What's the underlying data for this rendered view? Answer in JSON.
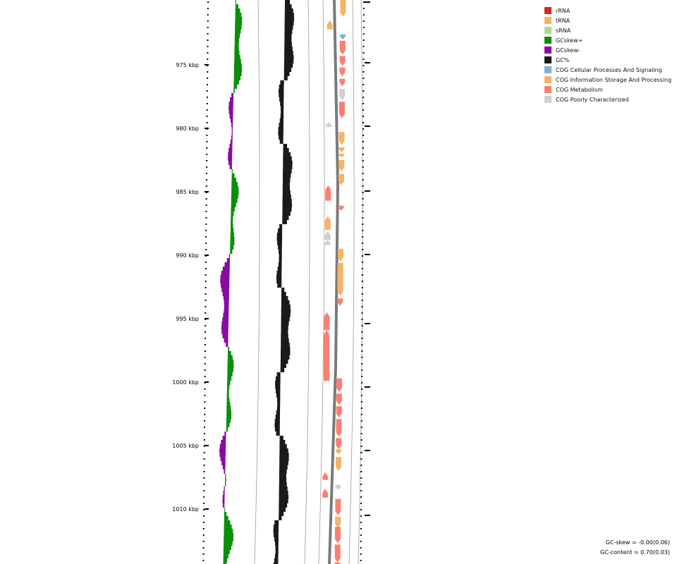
{
  "legend": [
    {
      "label": "rRNA",
      "color": "#d62728"
    },
    {
      "label": "tRNA",
      "color": "#f7b267"
    },
    {
      "label": "sRNA",
      "color": "#a6d99a"
    },
    {
      "label": "GCskew+",
      "color": "#0a8f0a"
    },
    {
      "label": "GCskew-",
      "color": "#8b0aa5"
    },
    {
      "label": "GC%",
      "color": "#1a1a1a"
    },
    {
      "label": "COG Cellular Processes And Signaling",
      "color": "#80b1d3"
    },
    {
      "label": "COG Information Storage And Processing",
      "color": "#f7b267"
    },
    {
      "label": "COG Metabolism",
      "color": "#fa8072"
    },
    {
      "label": "COG Poorly Characterized",
      "color": "#cfcfcf"
    }
  ],
  "axis": {
    "ticks": [
      "975 kbp",
      "980 kbp",
      "985 kbp",
      "990 kbp",
      "995 kbp",
      "1000 kbp",
      "1005 kbp",
      "1010 kbp"
    ]
  },
  "stats": {
    "gc_skew": "GC-skew = -0.00(0.06)",
    "gc_content": "GC-content = 0.70(0.03)"
  },
  "features": [
    {
      "kbp": 969.3,
      "len": 1.9,
      "strand": "+",
      "cog": "COG Information Storage And Processing"
    },
    {
      "kbp": 971.5,
      "len": 0.7,
      "strand": "-",
      "cog": "COG Information Storage And Processing"
    },
    {
      "kbp": 972.6,
      "len": 0.4,
      "strand": "+",
      "cog": "COG Cellular Processes And Signaling"
    },
    {
      "kbp": 973.1,
      "len": 1.1,
      "strand": "+",
      "cog": "COG Metabolism"
    },
    {
      "kbp": 974.3,
      "len": 0.8,
      "strand": "+",
      "cog": "COG Metabolism"
    },
    {
      "kbp": 975.2,
      "len": 0.7,
      "strand": "+",
      "cog": "COG Metabolism"
    },
    {
      "kbp": 976.1,
      "len": 0.6,
      "strand": "+",
      "cog": "COG Metabolism"
    },
    {
      "kbp": 976.9,
      "len": 0.9,
      "strand": "+",
      "cog": "COG Poorly Characterized"
    },
    {
      "kbp": 977.9,
      "len": 1.3,
      "strand": "+",
      "cog": "COG Metabolism"
    },
    {
      "kbp": 979.5,
      "len": 0.4,
      "strand": "-",
      "cog": "COG Poorly Characterized"
    },
    {
      "kbp": 980.3,
      "len": 1.0,
      "strand": "+",
      "cog": "COG Information Storage And Processing"
    },
    {
      "kbp": 981.5,
      "len": 0.4,
      "strand": "+",
      "cog": "COG Information Storage And Processing"
    },
    {
      "kbp": 982.0,
      "len": 0.3,
      "strand": "+",
      "cog": "COG Information Storage And Processing"
    },
    {
      "kbp": 982.5,
      "len": 0.9,
      "strand": "+",
      "cog": "COG Information Storage And Processing"
    },
    {
      "kbp": 983.6,
      "len": 0.9,
      "strand": "+",
      "cog": "COG Information Storage And Processing"
    },
    {
      "kbp": 984.5,
      "len": 1.2,
      "strand": "-",
      "cog": "COG Metabolism"
    },
    {
      "kbp": 986.1,
      "len": 0.4,
      "strand": "+",
      "cog": "COG Metabolism"
    },
    {
      "kbp": 986.9,
      "len": 1.1,
      "strand": "-",
      "cog": "COG Information Storage And Processing"
    },
    {
      "kbp": 988.1,
      "len": 0.7,
      "strand": "-",
      "cog": "COG Poorly Characterized"
    },
    {
      "kbp": 988.8,
      "len": 0.4,
      "strand": "-",
      "cog": "COG Poorly Characterized"
    },
    {
      "kbp": 989.5,
      "len": 1.0,
      "strand": "+",
      "cog": "COG Information Storage And Processing"
    },
    {
      "kbp": 990.6,
      "len": 2.6,
      "strand": "+",
      "cog": "COG Information Storage And Processing"
    },
    {
      "kbp": 993.4,
      "len": 0.6,
      "strand": "+",
      "cog": "COG Metabolism"
    },
    {
      "kbp": 994.5,
      "len": 1.4,
      "strand": "-",
      "cog": "COG Metabolism"
    },
    {
      "kbp": 995.9,
      "len": 4.0,
      "strand": "-",
      "cog": "COG Metabolism"
    },
    {
      "kbp": 998.3,
      "len": 1.0,
      "strand": "-",
      "cog": "COG Metabolism"
    },
    {
      "kbp": 999.7,
      "len": 1.1,
      "strand": "+",
      "cog": "COG Metabolism"
    },
    {
      "kbp": 1000.9,
      "len": 0.9,
      "strand": "+",
      "cog": "COG Metabolism"
    },
    {
      "kbp": 1001.9,
      "len": 0.9,
      "strand": "+",
      "cog": "COG Metabolism"
    },
    {
      "kbp": 1002.9,
      "len": 1.4,
      "strand": "+",
      "cog": "COG Metabolism"
    },
    {
      "kbp": 1004.4,
      "len": 0.9,
      "strand": "+",
      "cog": "COG Metabolism"
    },
    {
      "kbp": 1005.3,
      "len": 0.4,
      "strand": "+",
      "cog": "COG Information Storage And Processing"
    },
    {
      "kbp": 1005.9,
      "len": 1.1,
      "strand": "+",
      "cog": "COG Information Storage And Processing"
    },
    {
      "kbp": 1007.1,
      "len": 0.6,
      "strand": "-",
      "cog": "COG Metabolism"
    },
    {
      "kbp": 1008.1,
      "len": 0.4,
      "strand": "+",
      "cog": "COG Poorly Characterized"
    },
    {
      "kbp": 1008.4,
      "len": 0.7,
      "strand": "-",
      "cog": "COG Metabolism"
    },
    {
      "kbp": 1009.2,
      "len": 1.3,
      "strand": "+",
      "cog": "COG Metabolism"
    },
    {
      "kbp": 1010.6,
      "len": 0.9,
      "strand": "+",
      "cog": "COG Information Storage And Processing"
    },
    {
      "kbp": 1011.4,
      "len": 1.3,
      "strand": "+",
      "cog": "COG Metabolism"
    },
    {
      "kbp": 1012.8,
      "len": 1.4,
      "strand": "+",
      "cog": "COG Metabolism"
    },
    {
      "kbp": 1014.2,
      "len": 0.8,
      "strand": "+",
      "cog": "COG Metabolism"
    }
  ]
}
